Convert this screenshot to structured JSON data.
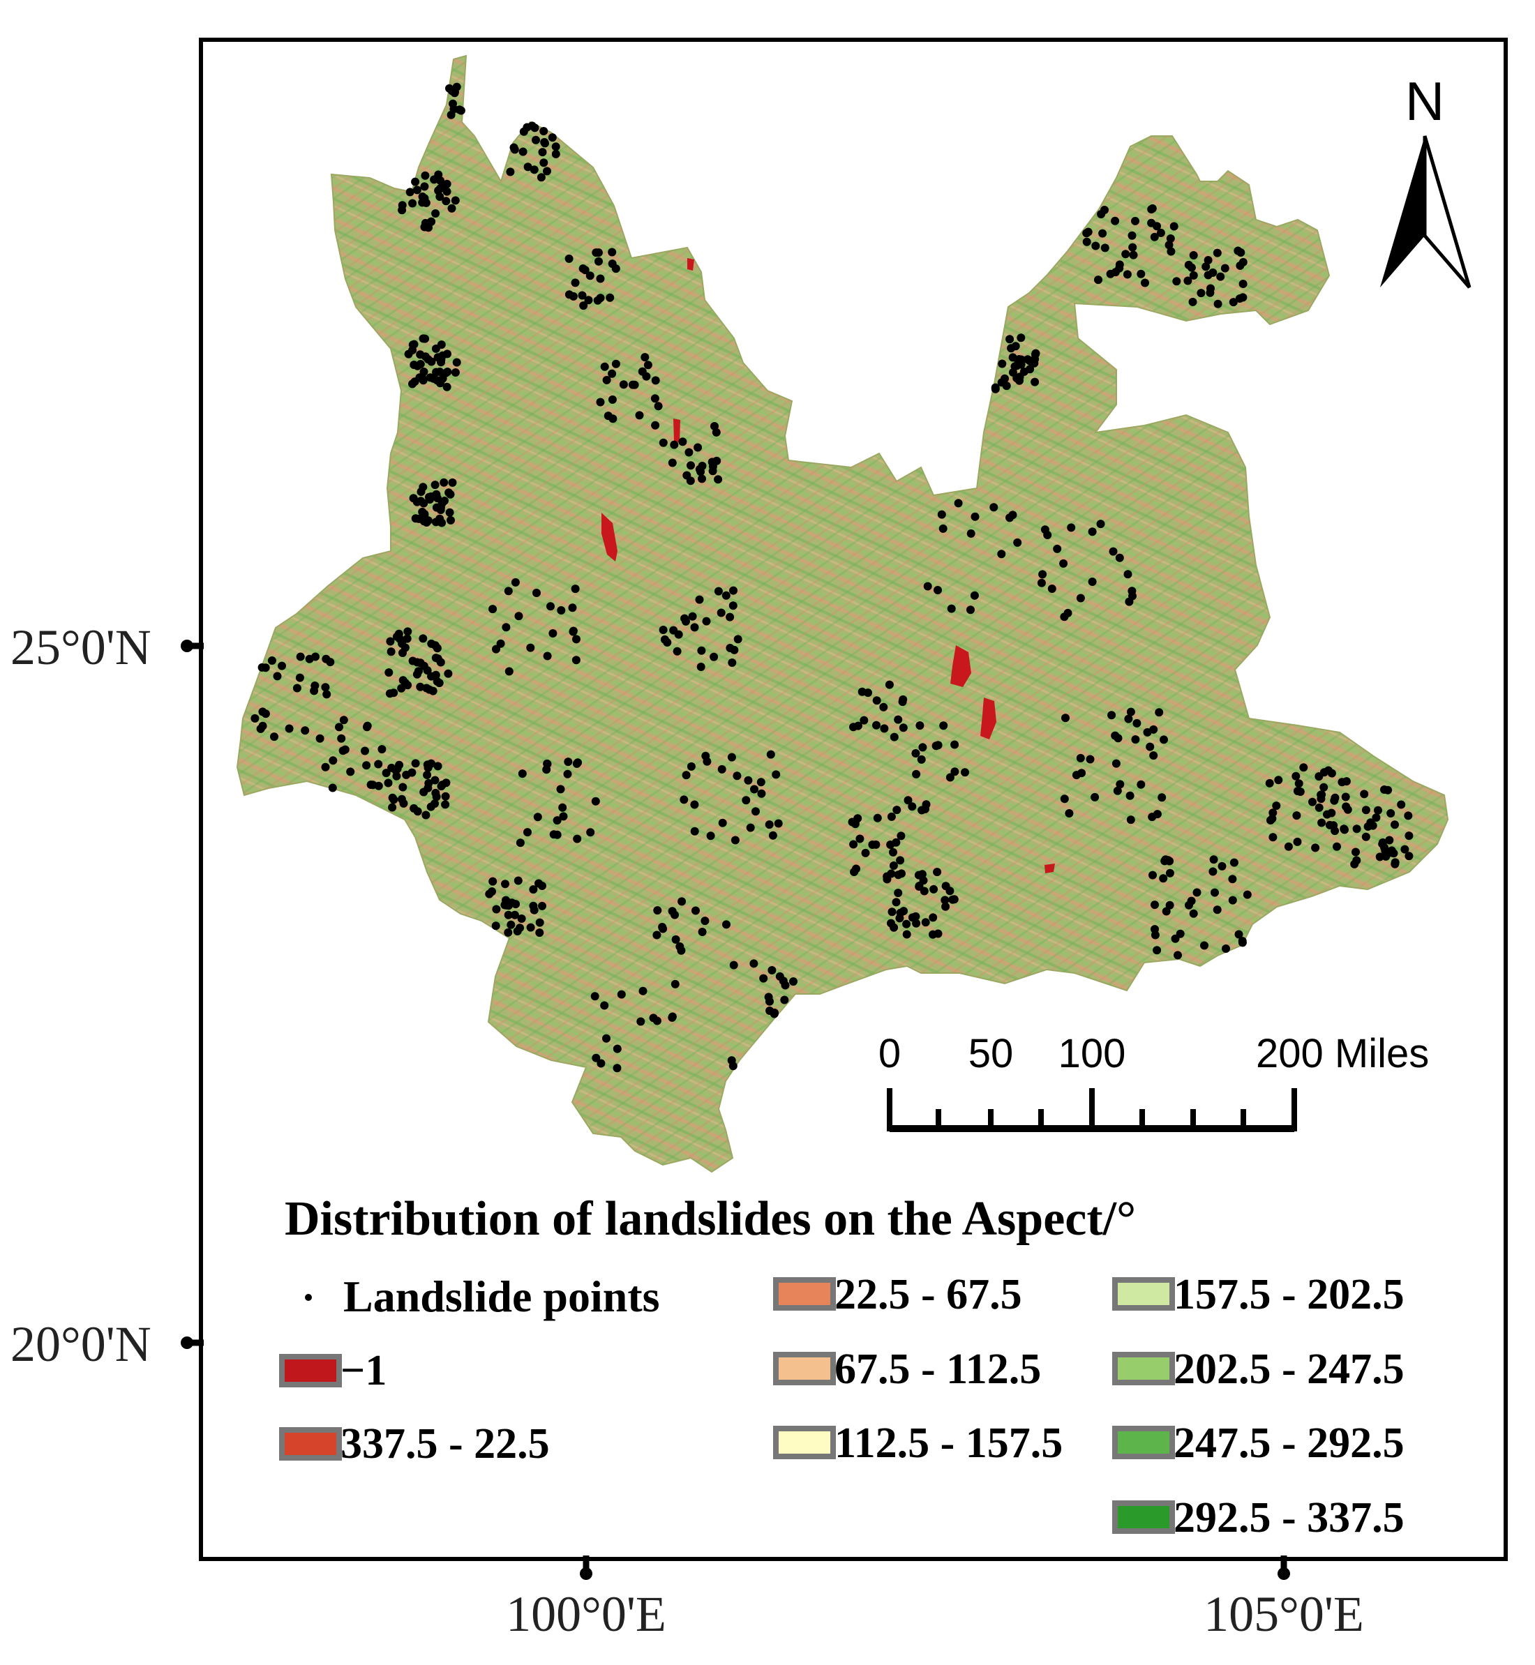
{
  "map": {
    "axes": {
      "latitude_labels": [
        "25°0'N",
        "20°0'N"
      ],
      "longitude_labels": [
        "100°0'E",
        "105°0'E"
      ]
    },
    "north_arrow": {
      "label": "N",
      "icon": "north-arrow-icon"
    },
    "scale_bar": {
      "labels": [
        "0",
        "50",
        "100",
        "200 Miles"
      ],
      "values_miles": [
        0,
        50,
        100,
        200
      ]
    },
    "region_fill_color": "#a9b772",
    "landslide_point_color": "#000000",
    "lake_color": "#c8171d"
  },
  "legend": {
    "title": "Distribution of landslides on the Aspect/°",
    "point_label": "Landslide points",
    "classes": [
      {
        "label": "−1",
        "color": "#c0171c"
      },
      {
        "label": "337.5 - 22.5",
        "color": "#d6452b"
      },
      {
        "label": "22.5 - 67.5",
        "color": "#e8845a"
      },
      {
        "label": "67.5 - 112.5",
        "color": "#f4c08e"
      },
      {
        "label": "112.5 - 157.5",
        "color": "#fefcc3"
      },
      {
        "label": "157.5 - 202.5",
        "color": "#cfe8a2"
      },
      {
        "label": "202.5 - 247.5",
        "color": "#98cd6c"
      },
      {
        "label": "247.5 - 292.5",
        "color": "#5db44b"
      },
      {
        "label": "292.5 - 337.5",
        "color": "#2a9a2a"
      }
    ]
  }
}
